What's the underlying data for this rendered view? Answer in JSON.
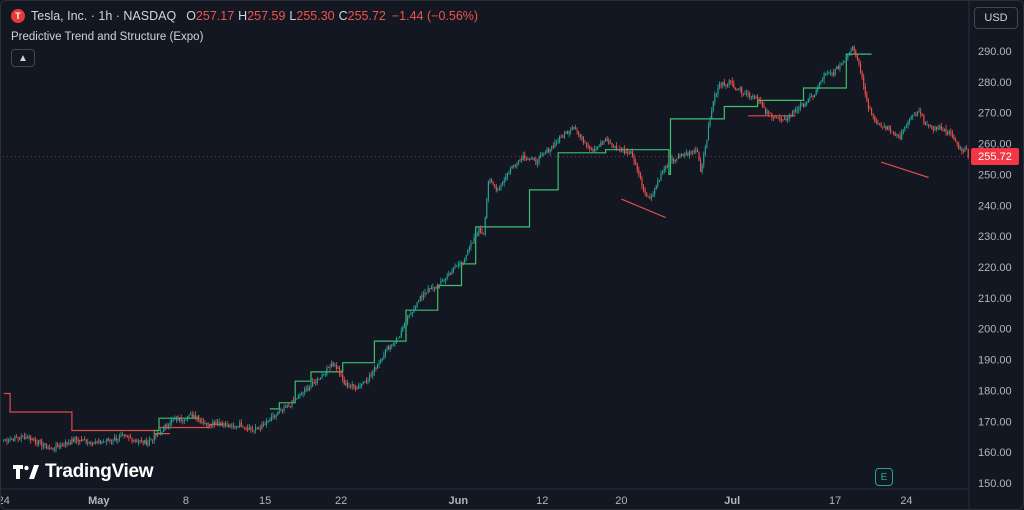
{
  "header": {
    "symbol": "Tesla, Inc. · 1h · NASDAQ",
    "logo_letter": "T",
    "o_label": "O",
    "o_value": "257.17",
    "h_label": "H",
    "h_value": "257.59",
    "l_label": "L",
    "l_value": "255.30",
    "c_label": "C",
    "c_value": "255.72",
    "change": "−1.44 (−0.56%)",
    "indicator": "Predictive Trend and Structure (Expo)",
    "collapse_icon": "chevron-up-icon"
  },
  "currency_button": "USD",
  "brand": "TradingView",
  "event_badge": "E",
  "last_price_label": "255.72",
  "colors": {
    "background": "#131722",
    "bull": "#26a69a",
    "bear": "#ef5350",
    "trend_up": "#3fbf6e",
    "trend_down": "#e04a4a",
    "price_tag": "#f23645"
  },
  "chart_data": {
    "type": "candlestick",
    "y_axis": {
      "min": 150,
      "max": 290,
      "ticks": [
        "150.00",
        "160.00",
        "170.00",
        "180.00",
        "190.00",
        "200.00",
        "210.00",
        "220.00",
        "230.00",
        "240.00",
        "250.00",
        "260.00",
        "270.00",
        "280.00",
        "290.00"
      ]
    },
    "x_axis": {
      "labels": [
        "24",
        "May",
        "8",
        "15",
        "22",
        "Jun",
        "12",
        "20",
        "Jul",
        "17",
        "24"
      ],
      "label_index": [
        0,
        60,
        115,
        165,
        213,
        287,
        340,
        390,
        460,
        525,
        570
      ]
    },
    "last_price": 255.72,
    "price_anchors": [
      [
        0,
        164
      ],
      [
        15,
        165
      ],
      [
        30,
        161
      ],
      [
        45,
        164
      ],
      [
        60,
        163
      ],
      [
        75,
        165
      ],
      [
        90,
        163
      ],
      [
        98,
        166
      ],
      [
        105,
        170
      ],
      [
        113,
        171
      ],
      [
        120,
        172
      ],
      [
        128,
        169
      ],
      [
        135,
        170
      ],
      [
        143,
        168
      ],
      [
        150,
        169
      ],
      [
        158,
        167
      ],
      [
        165,
        169
      ],
      [
        172,
        172
      ],
      [
        180,
        175
      ],
      [
        188,
        179
      ],
      [
        195,
        182
      ],
      [
        203,
        186
      ],
      [
        207,
        189
      ],
      [
        211,
        187
      ],
      [
        215,
        182
      ],
      [
        223,
        181
      ],
      [
        232,
        185
      ],
      [
        241,
        193
      ],
      [
        249,
        197
      ],
      [
        258,
        206
      ],
      [
        266,
        212
      ],
      [
        275,
        214
      ],
      [
        283,
        219
      ],
      [
        290,
        222
      ],
      [
        296,
        228
      ],
      [
        300,
        232
      ],
      [
        303,
        231
      ],
      [
        306,
        248
      ],
      [
        312,
        245
      ],
      [
        320,
        252
      ],
      [
        328,
        256
      ],
      [
        336,
        254
      ],
      [
        344,
        258
      ],
      [
        352,
        262
      ],
      [
        360,
        266
      ],
      [
        364,
        262
      ],
      [
        372,
        258
      ],
      [
        380,
        261
      ],
      [
        388,
        258
      ],
      [
        396,
        257
      ],
      [
        400,
        252
      ],
      [
        404,
        245
      ],
      [
        408,
        242
      ],
      [
        414,
        249
      ],
      [
        420,
        254
      ],
      [
        428,
        256
      ],
      [
        434,
        257
      ],
      [
        438,
        258
      ],
      [
        440,
        251
      ],
      [
        444,
        262
      ],
      [
        448,
        274
      ],
      [
        452,
        279
      ],
      [
        458,
        280
      ],
      [
        466,
        277
      ],
      [
        470,
        276
      ],
      [
        476,
        275
      ],
      [
        481,
        270
      ],
      [
        486,
        269
      ],
      [
        492,
        267
      ],
      [
        500,
        271
      ],
      [
        506,
        273
      ],
      [
        512,
        276
      ],
      [
        518,
        282
      ],
      [
        524,
        283
      ],
      [
        529,
        286
      ],
      [
        532,
        288
      ],
      [
        536,
        292
      ],
      [
        540,
        286
      ],
      [
        546,
        272
      ],
      [
        552,
        266
      ],
      [
        558,
        265
      ],
      [
        566,
        262
      ],
      [
        572,
        268
      ],
      [
        578,
        270
      ],
      [
        584,
        265
      ],
      [
        592,
        265
      ],
      [
        598,
        263
      ],
      [
        604,
        258
      ]
    ],
    "trend_segments": [
      {
        "color": "down",
        "points": [
          [
            0,
            179
          ],
          [
            4,
            179
          ],
          [
            4,
            173
          ],
          [
            43,
            173
          ],
          [
            43,
            167
          ],
          [
            95,
            167
          ],
          [
            95,
            166
          ],
          [
            105,
            166
          ]
        ]
      },
      {
        "color": "up",
        "points": [
          [
            95,
            167
          ],
          [
            98,
            167
          ],
          [
            98,
            171
          ],
          [
            123,
            171
          ],
          [
            123,
            172
          ]
        ]
      },
      {
        "color": "down",
        "points": [
          [
            98,
            168
          ],
          [
            130,
            168
          ],
          [
            130,
            169
          ],
          [
            138,
            169
          ]
        ]
      },
      {
        "color": "up",
        "points": [
          [
            168,
            174
          ],
          [
            174,
            174
          ],
          [
            174,
            176
          ],
          [
            184,
            176
          ],
          [
            184,
            183
          ],
          [
            194,
            183
          ],
          [
            194,
            186
          ],
          [
            214,
            186
          ],
          [
            214,
            189
          ],
          [
            234,
            189
          ],
          [
            234,
            196
          ],
          [
            254,
            196
          ],
          [
            254,
            206
          ],
          [
            274,
            206
          ],
          [
            274,
            214
          ],
          [
            289,
            214
          ],
          [
            289,
            221
          ],
          [
            298,
            221
          ],
          [
            298,
            233
          ],
          [
            332,
            233
          ],
          [
            332,
            245
          ],
          [
            350,
            245
          ],
          [
            350,
            257
          ],
          [
            380,
            257
          ],
          [
            380,
            258
          ],
          [
            420,
            258
          ],
          [
            420,
            250
          ],
          [
            421,
            250
          ],
          [
            421,
            268
          ],
          [
            455,
            268
          ],
          [
            455,
            272
          ],
          [
            476,
            272
          ],
          [
            476,
            274
          ],
          [
            505,
            274
          ],
          [
            505,
            278
          ],
          [
            532,
            278
          ],
          [
            532,
            289
          ],
          [
            548,
            289
          ]
        ]
      },
      {
        "color": "down",
        "points": [
          [
            390,
            242
          ],
          [
            418,
            236
          ]
        ]
      },
      {
        "color": "down",
        "points": [
          [
            470,
            269
          ],
          [
            500,
            269
          ]
        ]
      },
      {
        "color": "down",
        "points": [
          [
            554,
            254
          ],
          [
            584,
            249
          ]
        ]
      }
    ]
  }
}
